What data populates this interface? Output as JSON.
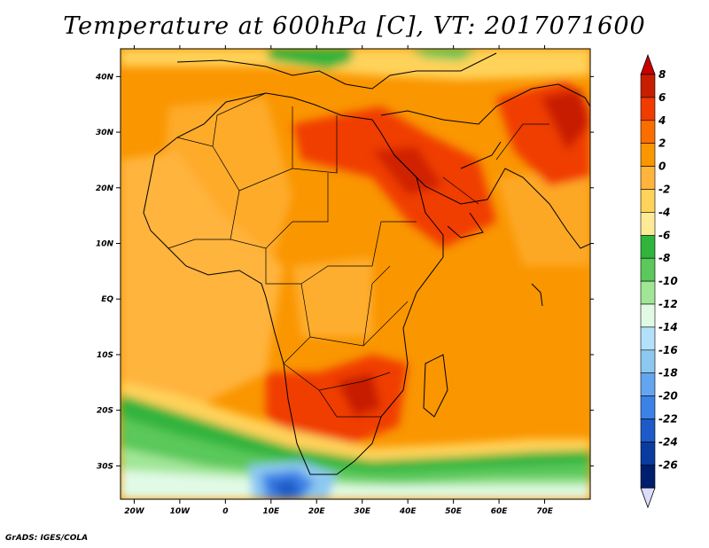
{
  "title": "Temperature at 600hPa [C], VT: 2017071600",
  "credit": "GrADS: IGES/COLA",
  "map": {
    "lon_range": [
      -23,
      80
    ],
    "lat_range": [
      -36,
      45
    ],
    "lon_ticks": [
      {
        "value": -20,
        "label": "20W"
      },
      {
        "value": -10,
        "label": "10W"
      },
      {
        "value": 0,
        "label": "0"
      },
      {
        "value": 10,
        "label": "10E"
      },
      {
        "value": 20,
        "label": "20E"
      },
      {
        "value": 30,
        "label": "30E"
      },
      {
        "value": 40,
        "label": "40E"
      },
      {
        "value": 50,
        "label": "50E"
      },
      {
        "value": 60,
        "label": "60E"
      },
      {
        "value": 70,
        "label": "70E"
      }
    ],
    "lat_ticks": [
      {
        "value": 40,
        "label": "40N"
      },
      {
        "value": 30,
        "label": "30N"
      },
      {
        "value": 20,
        "label": "20N"
      },
      {
        "value": 10,
        "label": "10N"
      },
      {
        "value": 0,
        "label": "EQ"
      },
      {
        "value": -10,
        "label": "10S"
      },
      {
        "value": -20,
        "label": "20S"
      },
      {
        "value": -30,
        "label": "30S"
      }
    ]
  },
  "colorbar": {
    "labels": [
      "8",
      "6",
      "4",
      "2",
      "0",
      "-2",
      "-4",
      "-6",
      "-8",
      "-10",
      "-12",
      "-14",
      "-16",
      "-18",
      "-20",
      "-22",
      "-24",
      "-26"
    ],
    "colors": [
      "#c81e00",
      "#f03c00",
      "#fa6e00",
      "#fa9600",
      "#ffb43c",
      "#ffd25a",
      "#ffeb96",
      "#30b43c",
      "#5ac85a",
      "#a0e696",
      "#e1fae6",
      "#b4e1fa",
      "#8cc8f0",
      "#64a5f0",
      "#3c82e6",
      "#1e5ac8",
      "#0a3ca0",
      "#001e6e"
    ],
    "top_cap_color": "#c80000",
    "bottom_cap_color": "#dcdcff"
  }
}
